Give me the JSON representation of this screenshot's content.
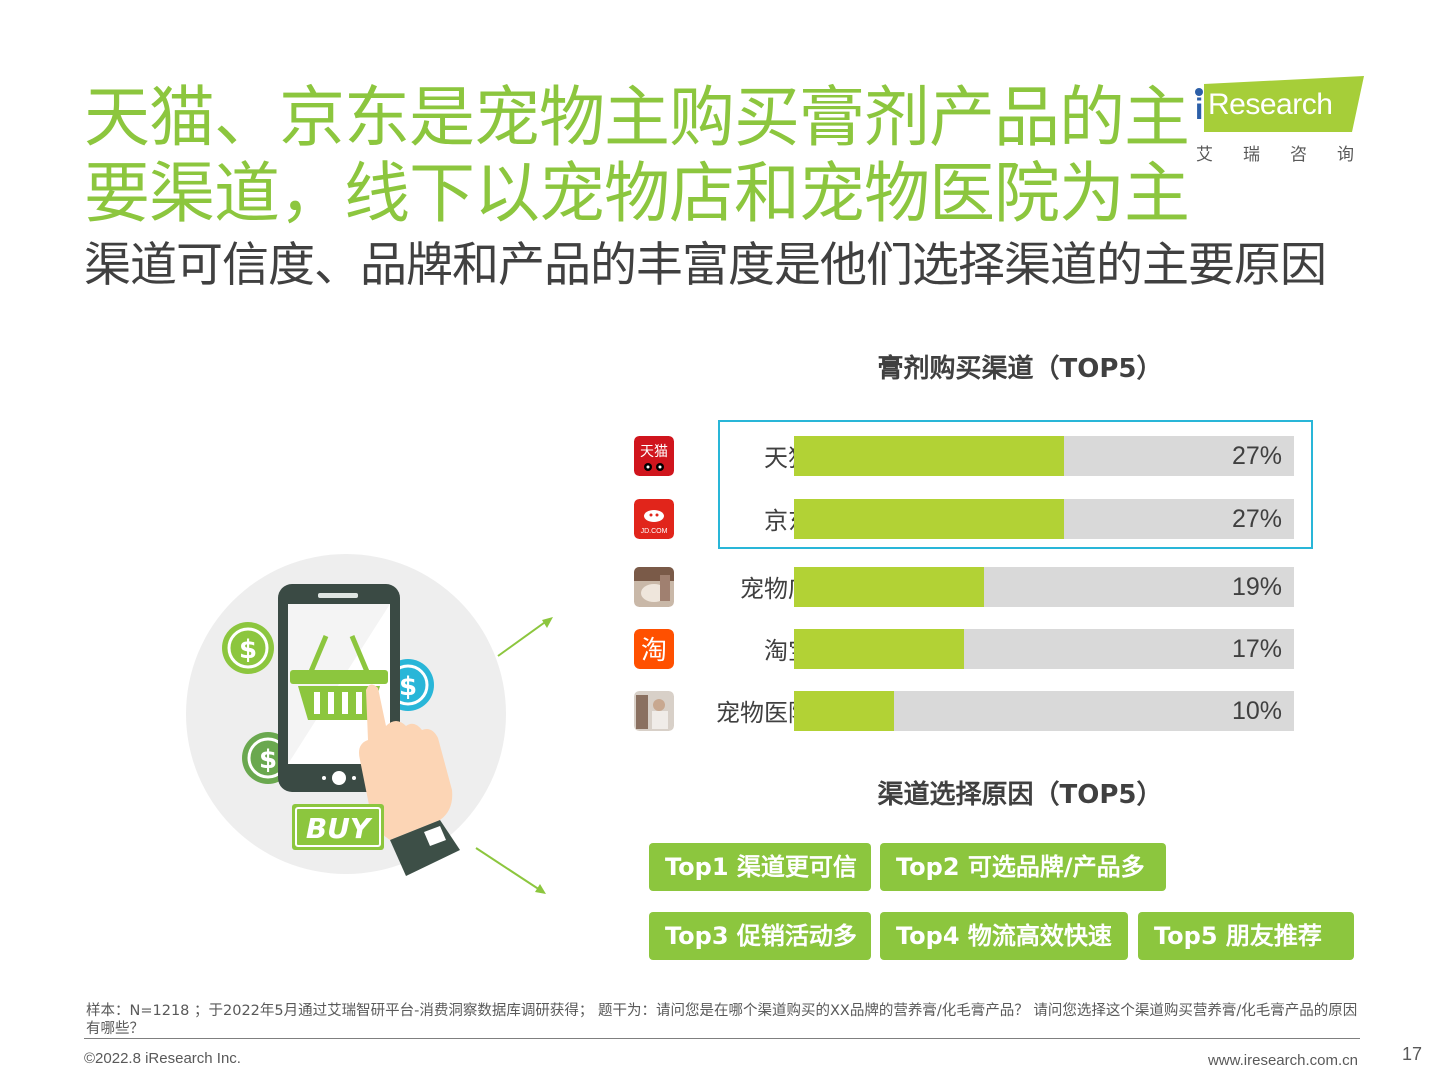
{
  "title": {
    "main": "天猫、京东是宠物主购买膏剂产品的主要渠道，线下以宠物店和宠物医院为主",
    "sub": "渠道可信度、品牌和产品的丰富度是他们选择渠道的主要原因"
  },
  "logo": {
    "brand_i": "i",
    "brand_rest": "Research",
    "cn_name": "艾瑞咨询"
  },
  "chart_data": {
    "type": "bar",
    "title": "膏剂购买渠道（TOP5）",
    "categories": [
      "天猫",
      "京东",
      "宠物店",
      "淘宝",
      "宠物医院"
    ],
    "values": [
      27,
      27,
      19,
      17,
      10
    ],
    "value_labels": [
      "27%",
      "27%",
      "19%",
      "17%",
      "10%"
    ],
    "highlighted": [
      "天猫",
      "京东"
    ],
    "colors": {
      "fill": "#b2d235",
      "track": "#d9d9d9",
      "highlight_border": "#29b6d8"
    },
    "icons": [
      "tmall-icon",
      "jd-icon",
      "pet-store-icon",
      "taobao-icon",
      "pet-hospital-icon"
    ]
  },
  "reasons": {
    "title": "渠道选择原因（TOP5）",
    "items": [
      "Top1 渠道更可信",
      "Top2 可选品牌/产品多",
      "Top3 促销活动多",
      "Top4 物流高效快速",
      "Top5 朋友推荐"
    ]
  },
  "illustration": {
    "buy_label": "BUY",
    "dollar": "$"
  },
  "footer": {
    "note": "样本：N=1218 ；于2022年5月通过艾瑞智研平台-消费洞察数据库调研获得； 题干为：请问您是在哪个渠道购买的XX品牌的营养膏/化毛膏产品？ 请问您选择这个渠道购买营养膏/化毛膏产品的原因有哪些？",
    "copyright": "©2022.8 iResearch Inc.",
    "website": "www.iresearch.com.cn",
    "page": "17"
  },
  "colors": {
    "accent_green": "#8cc63e",
    "text_dark": "#404040"
  }
}
